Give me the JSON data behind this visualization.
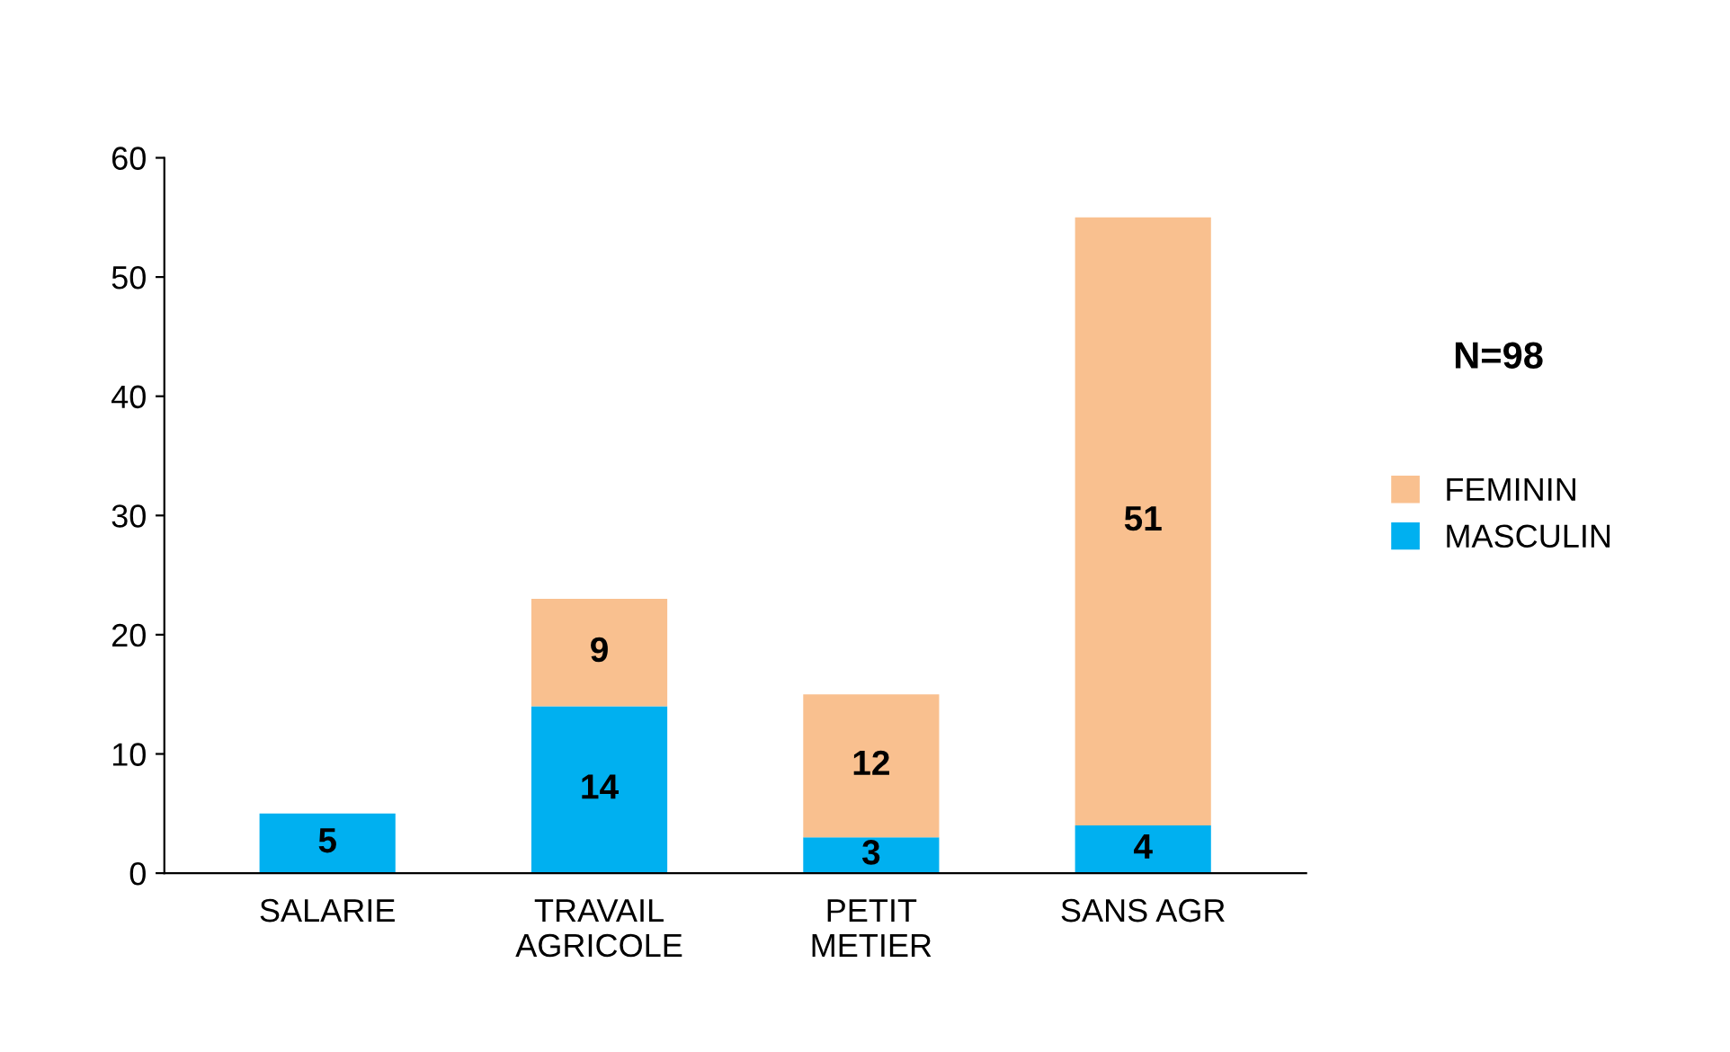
{
  "chart_data": {
    "type": "bar",
    "stacked": true,
    "categories": [
      "SALARIE",
      "TRAVAIL\nAGRICOLE",
      "PETIT\nMETIER",
      "SANS AGR"
    ],
    "series": [
      {
        "name": "MASCULIN",
        "color": "#00b0f0",
        "values": [
          5,
          14,
          3,
          4
        ]
      },
      {
        "name": "FEMININ",
        "color": "#f9c08f",
        "values": [
          null,
          9,
          12,
          51
        ]
      }
    ],
    "ylim": [
      0,
      60
    ],
    "yticks": [
      0,
      10,
      20,
      30,
      40,
      50,
      60
    ],
    "grid": false,
    "legend": "right",
    "data_labels": true,
    "annotations": [
      "N=98"
    ]
  }
}
